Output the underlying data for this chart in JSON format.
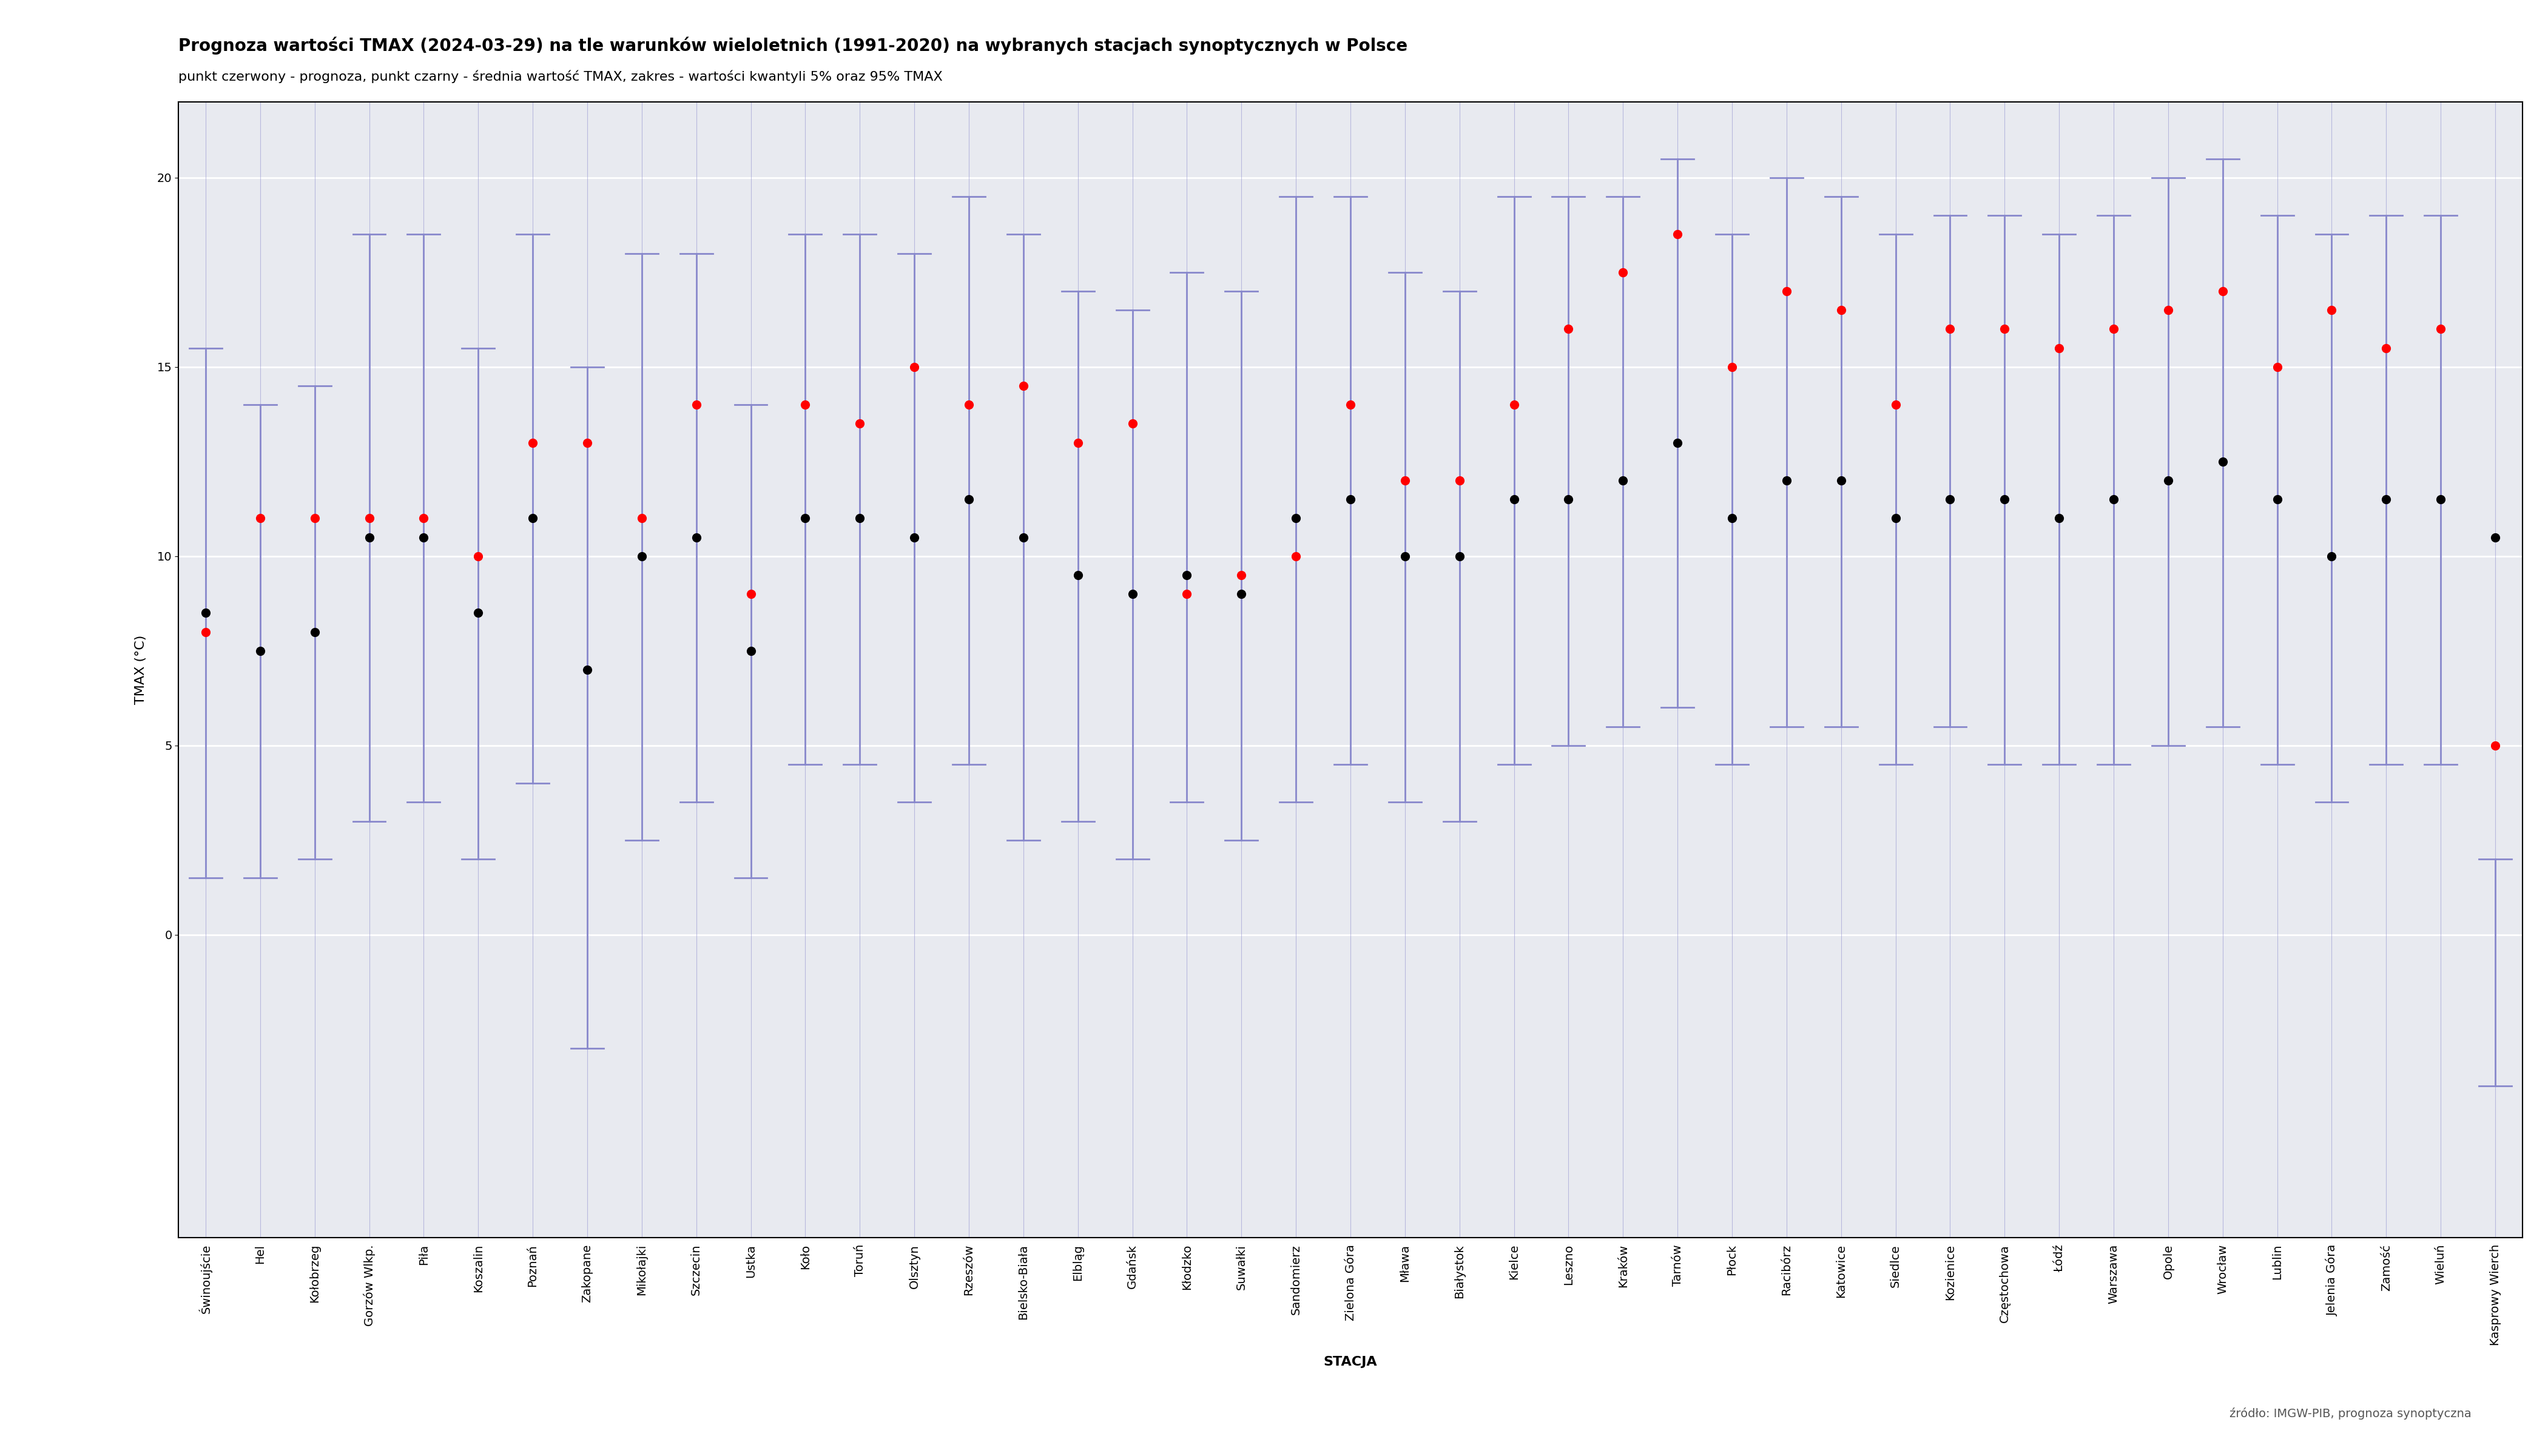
{
  "title": "Prognoza wartości TMAX (2024-03-29) na tle warunków wieloletnich (1991-2020) na wybranych stacjach synoptycznych w Polsce",
  "subtitle": "punkt czerwony - prognoza, punkt czarny - średnia wartość TMAX, zakres - wartości kwantyli 5% oraz 95% TMAX",
  "xlabel": "STACJA",
  "ylabel": "TMAX (°C)",
  "source": "źródło: IMGW-PIB, prognoza synoptyczna",
  "bg_color": "#dde3ef",
  "plot_bg_color": "#e8eaf0",
  "grid_color": "#ffffff",
  "line_color": "#8888cc",
  "stations": [
    "Świnoujście",
    "Hel",
    "Kołobrzeg",
    "Gorzów Wlkp.",
    "Piła",
    "Koszalin",
    "Poznań",
    "Zakopane",
    "Mikołajki",
    "Szczecin",
    "Ustka",
    "Koło",
    "Toruń",
    "Olsztyn",
    "Rzeszów",
    "Bielsko-Biała",
    "Elbląg",
    "Gdańsk",
    "Kłodzko",
    "Suwałki",
    "Sandomierz",
    "Zielona Góra",
    "Mława",
    "Białystok",
    "Kielce",
    "Leszno",
    "Kraków",
    "Tarnów",
    "Płock",
    "Racibórz",
    "Katowice",
    "Siedlce",
    "Kozienice",
    "Częstochowa",
    "Łódź",
    "Warszawa",
    "Opole",
    "Wrocław",
    "Lublin",
    "Jelenia Góra",
    "Zamość",
    "Wieluń",
    "Kasprowy Wierch"
  ],
  "forecast": [
    8.0,
    11.0,
    11.0,
    11.0,
    11.0,
    10.0,
    13.0,
    13.0,
    11.0,
    14.0,
    9.0,
    14.0,
    13.5,
    15.0,
    14.0,
    14.5,
    13.0,
    13.5,
    9.0,
    9.5,
    10.0,
    14.0,
    12.0,
    12.0,
    14.0,
    16.0,
    17.5,
    18.5,
    15.0,
    17.0,
    16.5,
    14.0,
    16.0,
    16.0,
    15.5,
    16.0,
    16.5,
    17.0,
    15.0,
    16.5,
    15.5,
    16.0,
    5.0
  ],
  "mean": [
    8.5,
    7.5,
    8.0,
    10.5,
    10.5,
    8.5,
    11.0,
    7.0,
    10.0,
    10.5,
    7.5,
    11.0,
    11.0,
    10.5,
    11.5,
    10.5,
    9.5,
    9.0,
    9.5,
    9.0,
    11.0,
    11.5,
    10.0,
    10.0,
    11.5,
    11.5,
    12.0,
    13.0,
    11.0,
    12.0,
    12.0,
    11.0,
    11.5,
    11.5,
    11.0,
    11.5,
    12.0,
    12.5,
    11.5,
    10.0,
    11.5,
    11.5,
    10.5
  ],
  "q05": [
    1.5,
    1.5,
    2.0,
    3.0,
    3.5,
    2.0,
    4.0,
    -3.0,
    2.5,
    3.5,
    1.5,
    4.5,
    4.5,
    3.5,
    4.5,
    2.5,
    3.0,
    2.0,
    3.5,
    2.5,
    3.5,
    4.5,
    3.5,
    3.0,
    4.5,
    5.0,
    5.5,
    6.0,
    4.5,
    5.5,
    5.5,
    4.5,
    5.5,
    4.5,
    4.5,
    4.5,
    5.0,
    5.5,
    4.5,
    3.5,
    4.5,
    4.5,
    -4.0
  ],
  "q95": [
    15.5,
    14.0,
    14.5,
    18.5,
    18.5,
    15.5,
    18.5,
    15.0,
    18.0,
    18.0,
    14.0,
    18.5,
    18.5,
    18.0,
    19.5,
    18.5,
    17.0,
    16.5,
    17.5,
    17.0,
    19.5,
    19.5,
    17.5,
    17.0,
    19.5,
    19.5,
    19.5,
    20.5,
    18.5,
    20.0,
    19.5,
    18.5,
    19.0,
    19.0,
    18.5,
    19.0,
    20.0,
    20.5,
    19.0,
    18.5,
    19.0,
    19.0,
    2.0
  ],
  "ylim": [
    -8,
    22
  ],
  "yticks": [
    0,
    5,
    10,
    15,
    20
  ],
  "title_fontsize": 20,
  "subtitle_fontsize": 16,
  "tick_fontsize": 14,
  "label_fontsize": 16,
  "source_fontsize": 14
}
